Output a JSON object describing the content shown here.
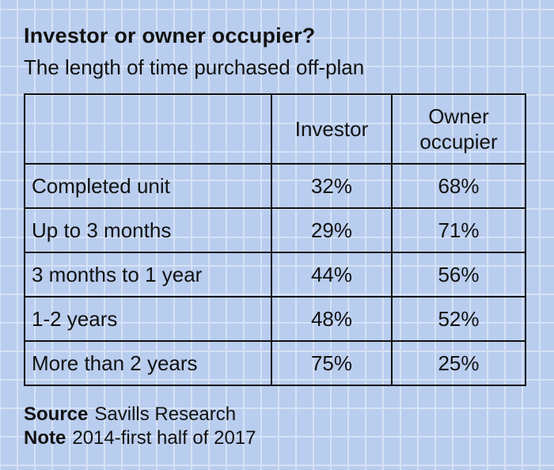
{
  "title": "Investor or owner occupier?",
  "subtitle": "The length of time purchased off-plan",
  "chart_data": {
    "type": "table",
    "columns": [
      "",
      "Investor",
      "Owner occupier"
    ],
    "rows": [
      {
        "label": "Completed unit",
        "investor": "32%",
        "owner": "68%"
      },
      {
        "label": "Up to 3 months",
        "investor": "29%",
        "owner": "71%"
      },
      {
        "label": "3 months to 1 year",
        "investor": "44%",
        "owner": "56%"
      },
      {
        "label": "1-2 years",
        "investor": "48%",
        "owner": "52%"
      },
      {
        "label": "More than 2 years",
        "investor": "75%",
        "owner": "25%"
      }
    ]
  },
  "header": {
    "investor": "Investor",
    "owner_line1": "Owner",
    "owner_line2": "occupier"
  },
  "footer": {
    "source_label": "Source",
    "source_value": "Savills Research",
    "note_label": "Note",
    "note_value": "2014-first half of 2017"
  },
  "colors": {
    "background": "#b9cdee",
    "grid_lines": "#d6e2f6",
    "text": "#111111"
  }
}
